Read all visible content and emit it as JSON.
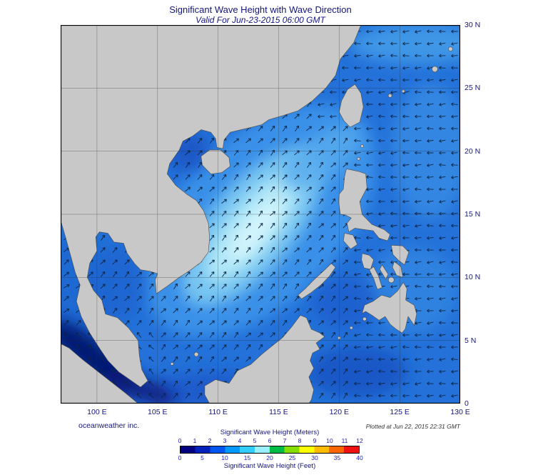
{
  "header": {
    "title": "Significant Wave Height with Wave Direction",
    "subtitle": "Valid For Jun-23-2015 06:00 GMT"
  },
  "map": {
    "x_ticks": [
      "100 E",
      "105 E",
      "110 E",
      "115 E",
      "120 E",
      "125 E",
      "130 E"
    ],
    "y_ticks": [
      "30 N",
      "25 N",
      "20 N",
      "15 N",
      "10 N",
      "5 N",
      "0"
    ]
  },
  "legend": {
    "meters_label": "Significant Wave Height (Meters)",
    "meters_ticks": [
      "0",
      "1",
      "2",
      "3",
      "4",
      "5",
      "6",
      "7",
      "8",
      "9",
      "10",
      "11",
      "12"
    ],
    "feet_label": "Significant Wave Height (Feet)",
    "feet_ticks": [
      "0",
      "5",
      "10",
      "15",
      "20",
      "25",
      "30",
      "35",
      "40"
    ],
    "gradient_colors": [
      "#000080",
      "#0022bb",
      "#0055ee",
      "#0099ff",
      "#33ccff",
      "#99eeff",
      "#00bb44",
      "#88dd00",
      "#ffff00",
      "#ffbb00",
      "#ff6600",
      "#ee1111"
    ]
  },
  "footer": {
    "credit": "oceanweather inc.",
    "plotted_at": "Plotted at Jun 22, 2015 22:31 GMT"
  },
  "colors": {
    "sea_base": "#2371d9",
    "sea_high": "#d9f7fd",
    "land": "#c8c8c8",
    "title_text": "#15157e",
    "tick_text": "#2121c0",
    "arrow": "#0d2646"
  }
}
